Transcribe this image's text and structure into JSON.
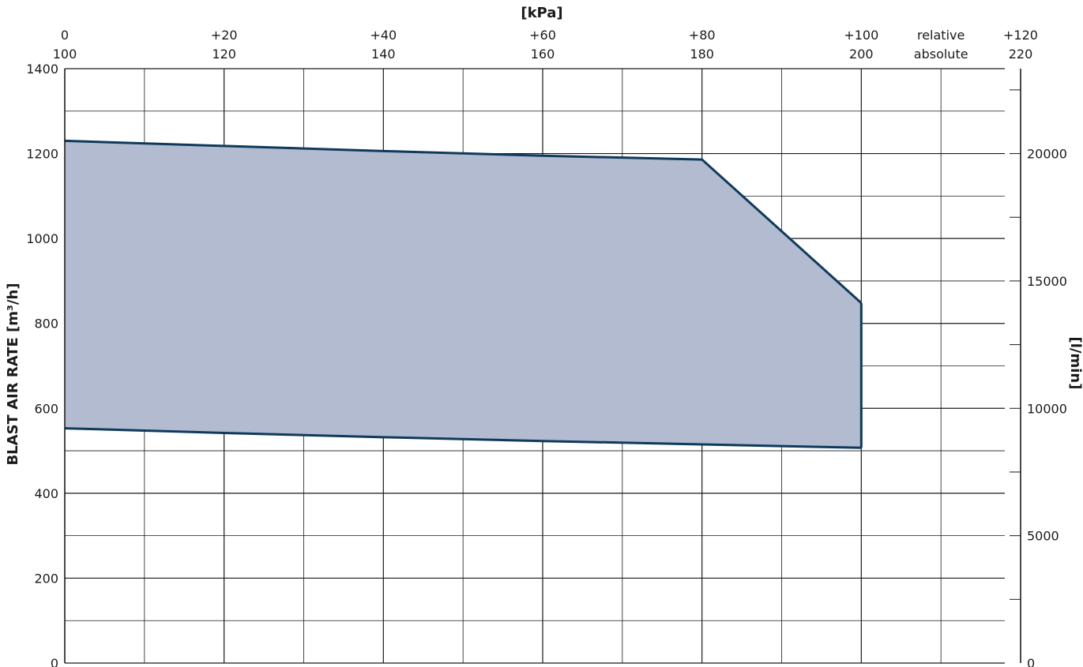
{
  "chart_data": {
    "type": "area",
    "x_unit_label": "[kPa]",
    "x_ticks_relative": [
      "0",
      "+20",
      "+40",
      "+60",
      "+80",
      "+100",
      "+120"
    ],
    "x_ticks_absolute": [
      "100",
      "120",
      "140",
      "160",
      "180",
      "200",
      "220"
    ],
    "x_scale_names": {
      "relative": "relative",
      "absolute": "absolute"
    },
    "xlim": [
      0,
      120
    ],
    "ylabel_left": "BLAST AIR RATE  [m³/h]",
    "ylim_left": [
      0,
      1400
    ],
    "y_ticks_left": [
      "0",
      "200",
      "400",
      "600",
      "800",
      "1000",
      "1200",
      "1400"
    ],
    "ylabel_right": "[l/min]",
    "ylim_right": [
      0,
      23333
    ],
    "y_ticks_right": [
      {
        "value": 0,
        "label": "0"
      },
      {
        "value": 5000,
        "label": "5000"
      },
      {
        "value": 10000,
        "label": "10000"
      },
      {
        "value": 15000,
        "label": "15000"
      },
      {
        "value": 20000,
        "label": "20000"
      }
    ],
    "grid": true,
    "series": [
      {
        "role": "upper_boundary",
        "x": [
          0,
          20,
          40,
          60,
          80,
          100
        ],
        "values": [
          1230,
          1218,
          1206,
          1195,
          1186,
          848
        ]
      },
      {
        "role": "lower_boundary",
        "x": [
          0,
          20,
          40,
          60,
          80,
          100
        ],
        "values": [
          553,
          542,
          532,
          523,
          515,
          507
        ]
      }
    ],
    "fill_color": "#b2bbcf",
    "line_color": "#0f3a5c",
    "grid_color": "#1a1a1a"
  }
}
